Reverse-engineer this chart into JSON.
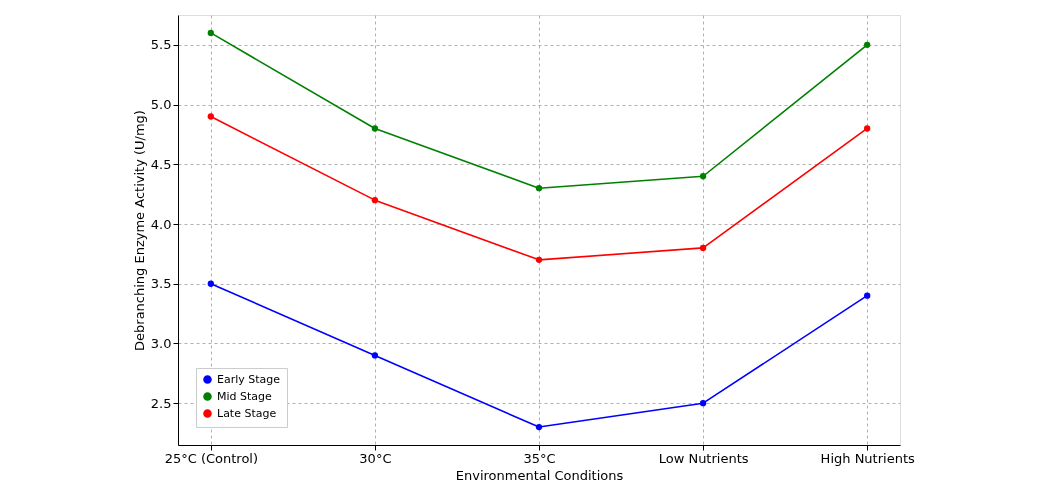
{
  "chart_data": {
    "type": "line",
    "xlabel": "Environmental Conditions",
    "ylabel": "Debranching Enzyme Activity (U/mg)",
    "categories": [
      "25°C (Control)",
      "30°C",
      "35°C",
      "Low Nutrients",
      "High Nutrients"
    ],
    "series": [
      {
        "name": "Early Stage",
        "color": "#0000ff",
        "values": [
          3.5,
          2.9,
          2.3,
          2.5,
          3.4
        ]
      },
      {
        "name": "Mid Stage",
        "color": "#008000",
        "values": [
          5.6,
          4.8,
          4.3,
          4.4,
          5.5
        ]
      },
      {
        "name": "Late Stage",
        "color": "#ff0000",
        "values": [
          4.9,
          4.2,
          3.7,
          3.8,
          4.8
        ]
      }
    ],
    "ylim": [
      2.15,
      5.75
    ],
    "yticks": [
      2.5,
      {
        "value": 3,
        "label": "3.0"
      },
      3.5,
      {
        "value": 4,
        "label": "4.0"
      },
      4.5,
      {
        "value": 5,
        "label": "5.0"
      },
      5.5
    ],
    "grid": true,
    "legend": "bottom left",
    "marker": "circle",
    "line_style": "solid"
  }
}
